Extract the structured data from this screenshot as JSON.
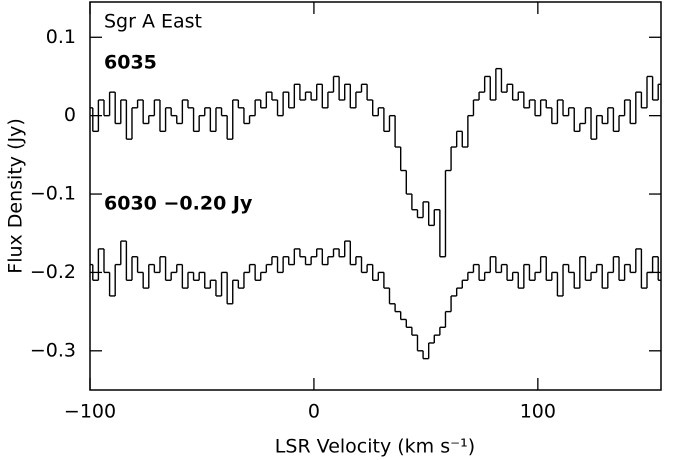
{
  "chart_data": {
    "type": "step",
    "annotations": [
      "Sgr A East"
    ],
    "xlabel": "LSR Velocity (km s⁻¹)",
    "ylabel": "Flux Density (Jy)",
    "xlim": [
      -100,
      155
    ],
    "ylim": [
      -0.35,
      0.145
    ],
    "xticks": [
      {
        "value": -100,
        "label": "−100"
      },
      0,
      100
    ],
    "yticks": [
      {
        "value": -0.3,
        "label": "−0.3"
      },
      {
        "value": -0.2,
        "label": "−0.2"
      },
      {
        "value": -0.1,
        "label": "−0.1"
      },
      0,
      0.1
    ],
    "x": [
      -100,
      -97.5,
      -95,
      -92.5,
      -90,
      -87.5,
      -85,
      -82.5,
      -80,
      -77.5,
      -75,
      -72.5,
      -70,
      -67.5,
      -65,
      -62.5,
      -60,
      -57.5,
      -55,
      -52.5,
      -50,
      -47.5,
      -45,
      -42.5,
      -40,
      -37.5,
      -35,
      -32.5,
      -30,
      -27.5,
      -25,
      -22.5,
      -20,
      -17.5,
      -15,
      -12.5,
      -10,
      -7.5,
      -5,
      -2.5,
      0,
      2.5,
      5,
      7.5,
      10,
      12.5,
      15,
      17.5,
      20,
      22.5,
      25,
      27.5,
      30,
      32.5,
      35,
      37.5,
      40,
      42.5,
      45,
      47.5,
      50,
      52.5,
      55,
      57.5,
      60,
      62.5,
      65,
      67.5,
      70,
      72.5,
      75,
      77.5,
      80,
      82.5,
      85,
      87.5,
      90,
      92.5,
      95,
      97.5,
      100,
      102.5,
      105,
      107.5,
      110,
      112.5,
      115,
      117.5,
      120,
      122.5,
      125,
      127.5,
      130,
      132.5,
      135,
      137.5,
      140,
      142.5,
      145,
      147.5,
      150,
      152.5,
      155
    ],
    "series": [
      {
        "name": "6035",
        "color": "#000000",
        "values": [
          0.01,
          -0.02,
          0.02,
          0.0,
          0.03,
          -0.01,
          0.02,
          -0.03,
          0.01,
          0.02,
          -0.01,
          0.0,
          0.02,
          -0.02,
          0.01,
          0.0,
          -0.01,
          0.02,
          0.01,
          -0.02,
          0.0,
          0.01,
          -0.02,
          0.01,
          0.0,
          -0.03,
          0.02,
          0.01,
          -0.01,
          0.0,
          0.02,
          0.01,
          0.03,
          0.02,
          0.0,
          0.03,
          0.01,
          0.04,
          0.02,
          0.03,
          0.02,
          0.04,
          0.01,
          0.03,
          0.05,
          0.02,
          0.04,
          0.01,
          0.03,
          0.04,
          0.02,
          0.0,
          0.01,
          -0.02,
          0.0,
          -0.04,
          -0.07,
          -0.1,
          -0.12,
          -0.13,
          -0.11,
          -0.14,
          -0.12,
          -0.18,
          -0.07,
          -0.04,
          -0.02,
          -0.04,
          0.0,
          0.02,
          0.03,
          0.05,
          0.02,
          0.06,
          0.03,
          0.04,
          0.02,
          0.03,
          0.01,
          0.02,
          0.0,
          0.02,
          0.01,
          -0.01,
          0.02,
          0.0,
          0.01,
          -0.02,
          -0.01,
          0.01,
          -0.03,
          0.0,
          -0.01,
          0.01,
          -0.02,
          0.0,
          0.02,
          -0.01,
          0.03,
          0.01,
          0.05,
          0.02,
          0.04
        ]
      },
      {
        "name": "6030 −0.20 Jy",
        "color": "#000000",
        "values": [
          -0.19,
          -0.21,
          -0.17,
          -0.2,
          -0.23,
          -0.19,
          -0.16,
          -0.21,
          -0.18,
          -0.2,
          -0.22,
          -0.19,
          -0.2,
          -0.18,
          -0.21,
          -0.2,
          -0.19,
          -0.22,
          -0.2,
          -0.21,
          -0.2,
          -0.22,
          -0.21,
          -0.23,
          -0.2,
          -0.24,
          -0.21,
          -0.22,
          -0.2,
          -0.19,
          -0.21,
          -0.2,
          -0.19,
          -0.18,
          -0.2,
          -0.18,
          -0.19,
          -0.17,
          -0.18,
          -0.19,
          -0.18,
          -0.17,
          -0.19,
          -0.18,
          -0.17,
          -0.18,
          -0.16,
          -0.19,
          -0.18,
          -0.2,
          -0.19,
          -0.21,
          -0.2,
          -0.22,
          -0.24,
          -0.25,
          -0.26,
          -0.27,
          -0.28,
          -0.3,
          -0.31,
          -0.29,
          -0.28,
          -0.27,
          -0.25,
          -0.23,
          -0.22,
          -0.21,
          -0.2,
          -0.19,
          -0.21,
          -0.2,
          -0.18,
          -0.2,
          -0.19,
          -0.21,
          -0.2,
          -0.22,
          -0.19,
          -0.21,
          -0.2,
          -0.18,
          -0.21,
          -0.2,
          -0.23,
          -0.19,
          -0.2,
          -0.22,
          -0.18,
          -0.21,
          -0.2,
          -0.19,
          -0.22,
          -0.2,
          -0.18,
          -0.21,
          -0.19,
          -0.2,
          -0.17,
          -0.22,
          -0.2,
          -0.18,
          -0.21
        ]
      }
    ]
  }
}
